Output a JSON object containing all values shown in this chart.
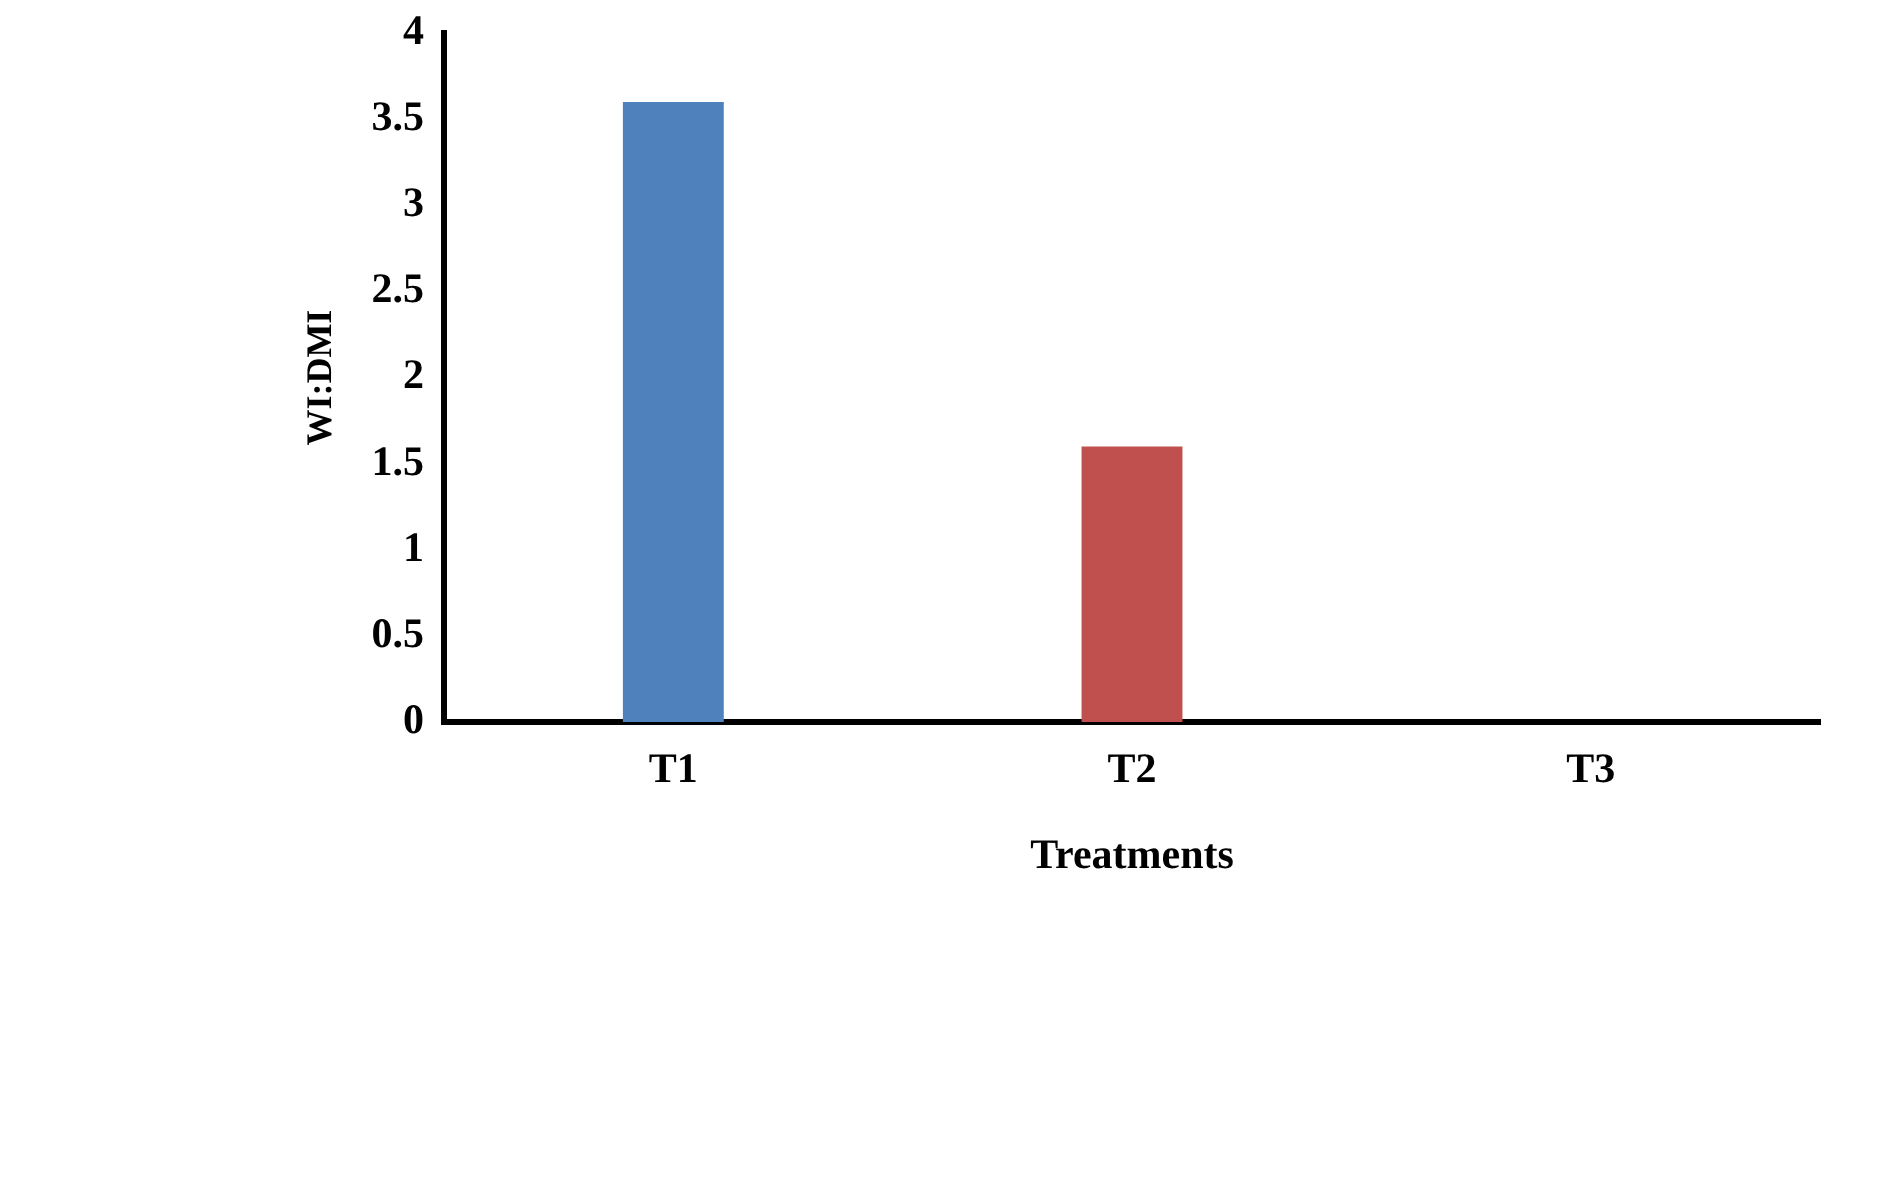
{
  "chart_data": {
    "type": "bar",
    "xlabel": "Treatments",
    "ylabel": "WI:DMI",
    "categories": [
      "T1",
      "T2",
      "T3"
    ],
    "values": [
      3.6,
      1.6,
      0
    ],
    "colors": [
      "#4f81bd",
      "#c0504d",
      "#77933c"
    ],
    "ylim": [
      0,
      4
    ],
    "yticks": [
      0,
      0.5,
      1,
      1.5,
      2,
      2.5,
      3,
      3.5,
      4
    ],
    "grid": false,
    "legend": false
  }
}
